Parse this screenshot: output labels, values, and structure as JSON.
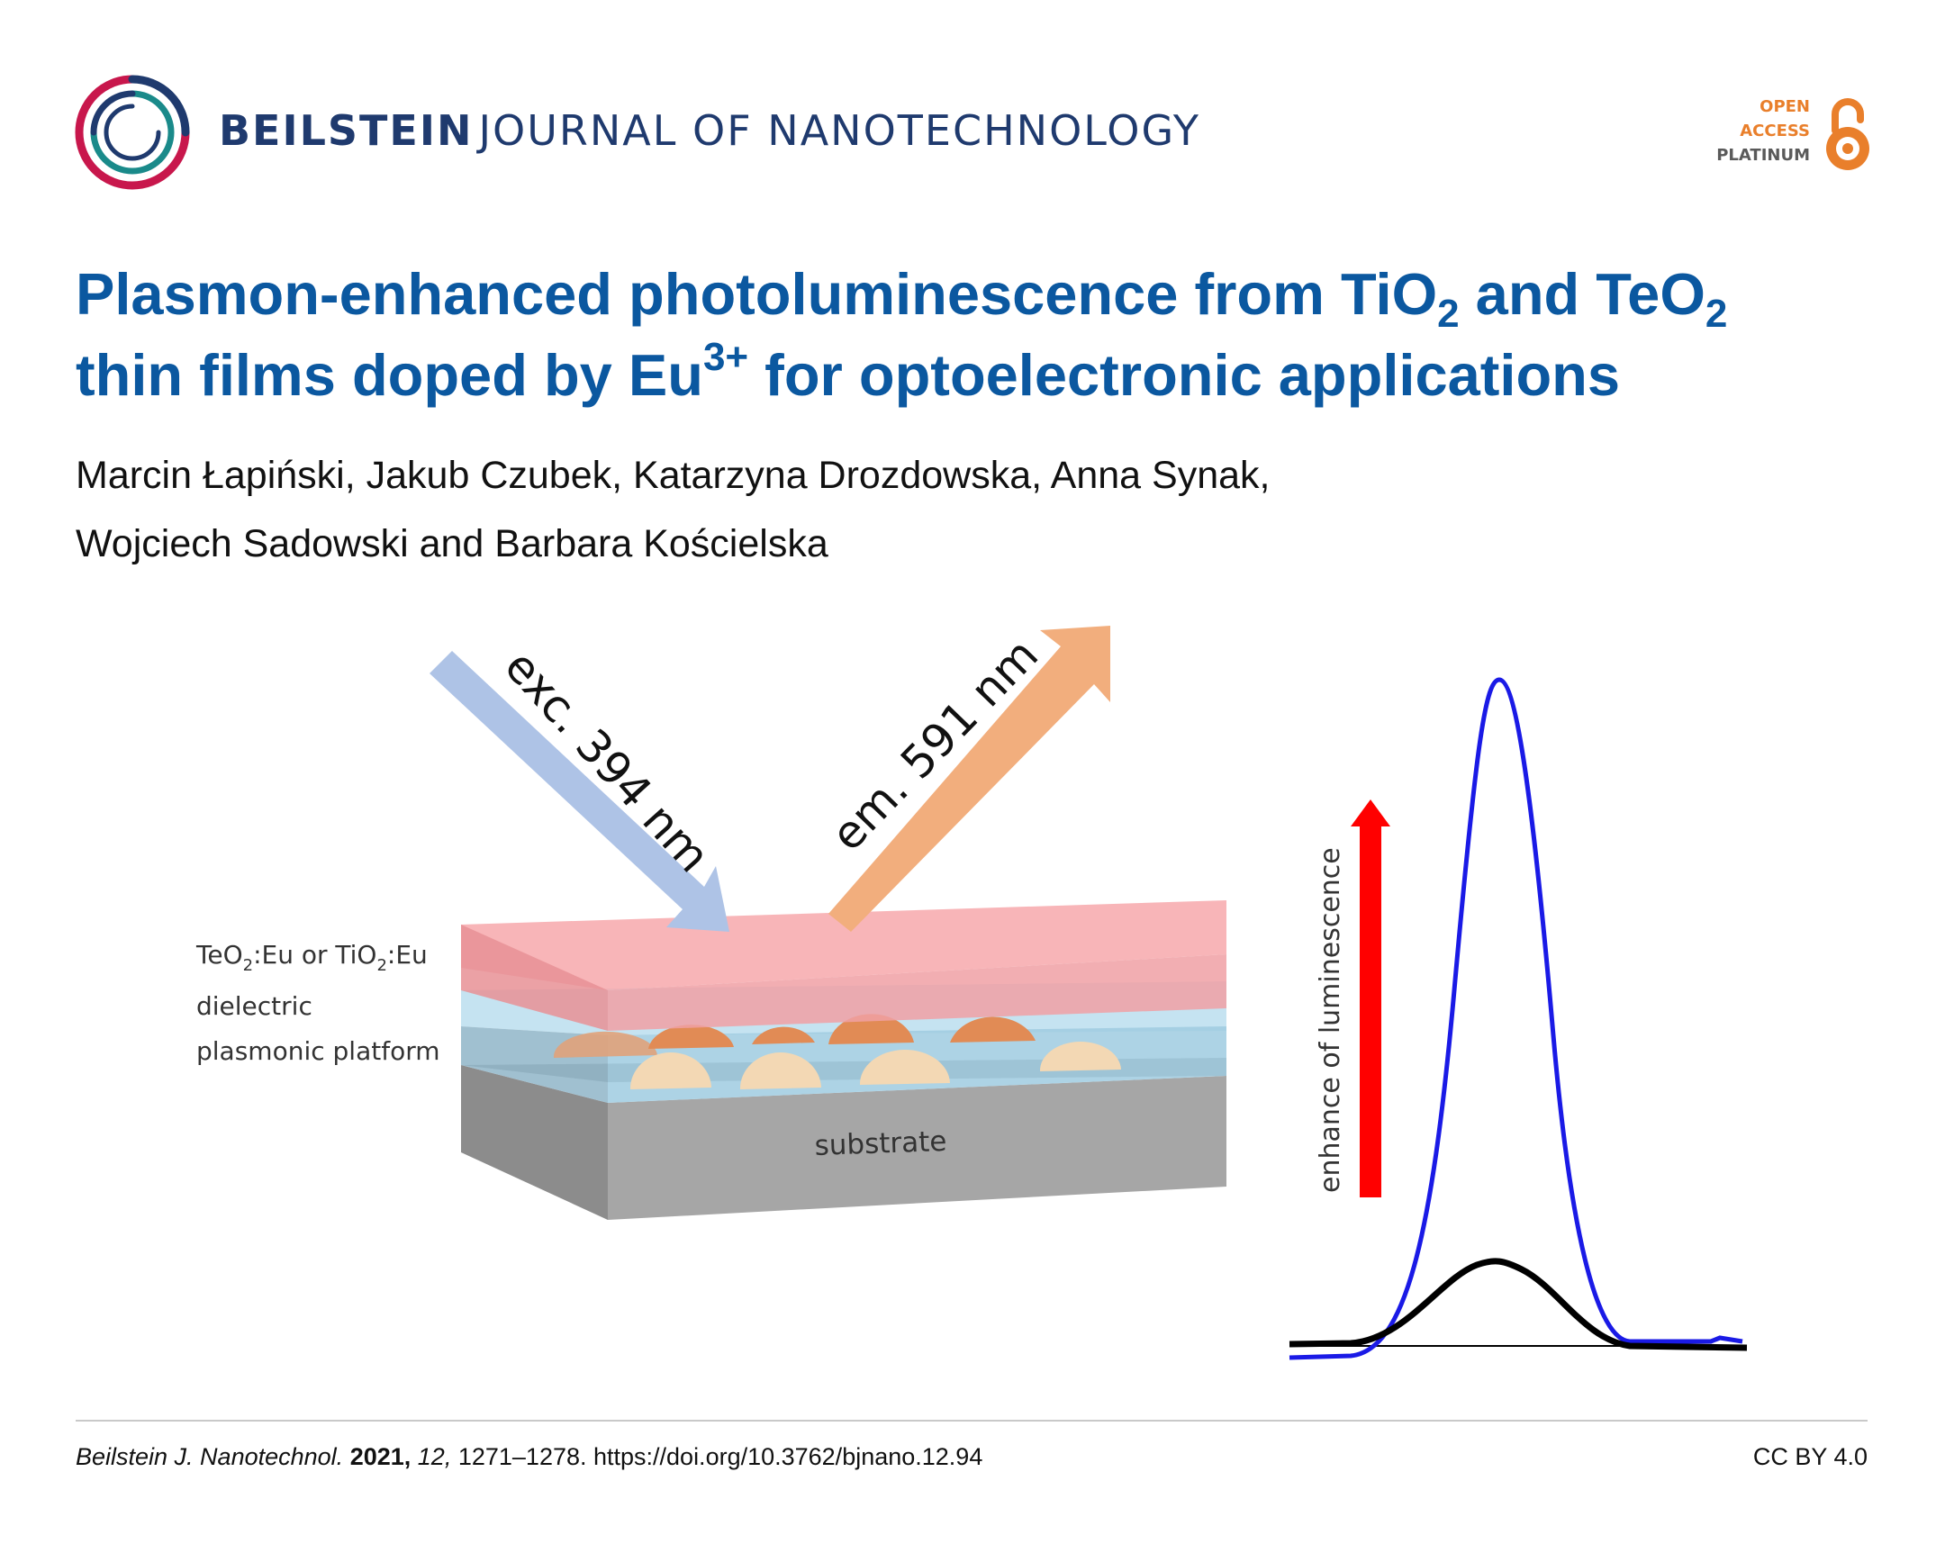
{
  "header": {
    "journal_brand": "BEILSTEIN",
    "journal_rest": "JOURNAL OF NANOTECHNOLOGY",
    "open_access": [
      "OPEN",
      "ACCESS",
      "PLATINUM"
    ],
    "colors": {
      "journal": "#1f3a6e",
      "open_access": "#e97f2b",
      "platinum": "#5a5a5a"
    }
  },
  "article": {
    "title_parts": [
      "Plasmon-enhanced photoluminescence from TiO",
      "2",
      " and TeO",
      "2",
      "thin films doped by Eu",
      "3+",
      " for optoelectronic applications"
    ],
    "authors_line1": "Marcin Łapiński, Jakub Czubek, Katarzyna Drozdowska, Anna Synak,",
    "authors_line2": "Wojciech Sadowski and Barbara Kościelska",
    "title_color": "#0b58a0"
  },
  "figure": {
    "exc_label": "exc. 394 nm",
    "em_label": "em. 591 nm",
    "layer_label_1a": "TeO",
    "layer_label_1b": "2",
    "layer_label_1c": ":Eu or TiO",
    "layer_label_1d": "2",
    "layer_label_1e": ":Eu",
    "layer_label_2": "dielectric",
    "layer_label_3": "plasmonic platform",
    "substrate_label": "substrate",
    "enhancement_label": "enhance of luminescence",
    "colors": {
      "exc_arrow": "#aec3e6",
      "em_arrow": "#f2ae7d",
      "top_layer": "#f7a8ac",
      "dielectric": "#bfe0f0",
      "substrate": "#a6a6a6",
      "enhanced_curve": "#1a1ae6",
      "base_curve": "#000000",
      "enhance_arrow": "#ff0000"
    }
  },
  "footer": {
    "journal_abbrev": "Beilstein J. Nanotechnol.",
    "year": "2021,",
    "volume": "12,",
    "pages_doi": "1271–1278. https://doi.org/10.3762/bjnano.12.94",
    "license": "CC BY 4.0"
  }
}
